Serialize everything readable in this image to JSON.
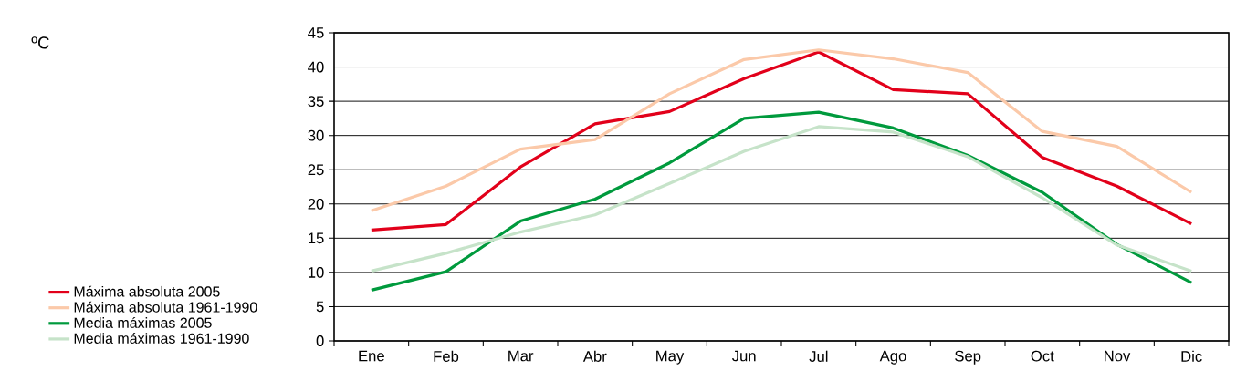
{
  "chart_data": {
    "type": "line",
    "annotations": [
      "ºC"
    ],
    "categories": [
      "Ene",
      "Feb",
      "Mar",
      "Abr",
      "May",
      "Jun",
      "Jul",
      "Ago",
      "Sep",
      "Oct",
      "Nov",
      "Dic"
    ],
    "series": [
      {
        "name": "Máxima absoluta 2005",
        "color": "#e2001a",
        "values": [
          16.2,
          17.0,
          25.4,
          31.7,
          33.5,
          38.3,
          42.2,
          36.7,
          36.1,
          26.8,
          22.6,
          17.1
        ]
      },
      {
        "name": "Máxima absoluta 1961-1990",
        "color": "#fbc9a9",
        "values": [
          19.0,
          22.6,
          28.0,
          29.4,
          36.1,
          41.1,
          42.5,
          41.2,
          39.2,
          30.6,
          28.4,
          21.7
        ]
      },
      {
        "name": "Media máximas 2005",
        "color": "#009a3d",
        "values": [
          7.4,
          10.1,
          17.5,
          20.7,
          26.0,
          32.5,
          33.4,
          31.1,
          27.1,
          21.7,
          14.1,
          8.5
        ]
      },
      {
        "name": "Media máximas 1961-1990",
        "color": "#c6e3c9",
        "values": [
          10.2,
          12.8,
          15.9,
          18.4,
          23.0,
          27.7,
          31.3,
          30.5,
          26.9,
          20.9,
          14.0,
          10.2
        ]
      }
    ],
    "ylim": [
      0,
      45
    ],
    "yticks": [
      0,
      5,
      10,
      15,
      20,
      25,
      30,
      35,
      40,
      45
    ],
    "grid": "y",
    "legend": "bottom left",
    "marker": "none",
    "line_style": "solid"
  }
}
